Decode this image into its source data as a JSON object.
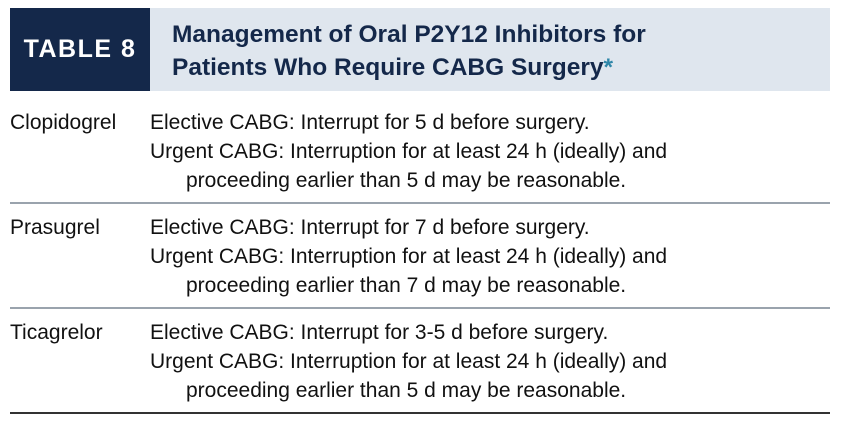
{
  "header": {
    "label": "TABLE 8",
    "title_line1": "Management of Oral P2Y12 Inhibitors for",
    "title_line2": "Patients Who Require CABG Surgery",
    "asterisk": "*"
  },
  "rows": [
    {
      "drug": "Clopidogrel",
      "elective": "Elective CABG: Interrupt for 5 d before surgery.",
      "urgent": "Urgent CABG: Interruption for at least 24 h (ideally) and",
      "urgent_cont": "proceeding earlier than 5 d may be reasonable."
    },
    {
      "drug": "Prasugrel",
      "elective": "Elective CABG: Interrupt for 7 d before surgery.",
      "urgent": "Urgent CABG: Interruption for at least 24 h (ideally) and",
      "urgent_cont": "proceeding earlier than 7 d may be reasonable."
    },
    {
      "drug": "Ticagrelor",
      "elective": "Elective CABG: Interrupt for 3-5 d before surgery.",
      "urgent": "Urgent CABG: Interruption for at least 24 h (ideally) and",
      "urgent_cont": "proceeding earlier than 5 d may be reasonable."
    }
  ],
  "colors": {
    "navy": "#14284a",
    "header_bg": "#dfe6ee",
    "asterisk": "#2e86a8"
  }
}
